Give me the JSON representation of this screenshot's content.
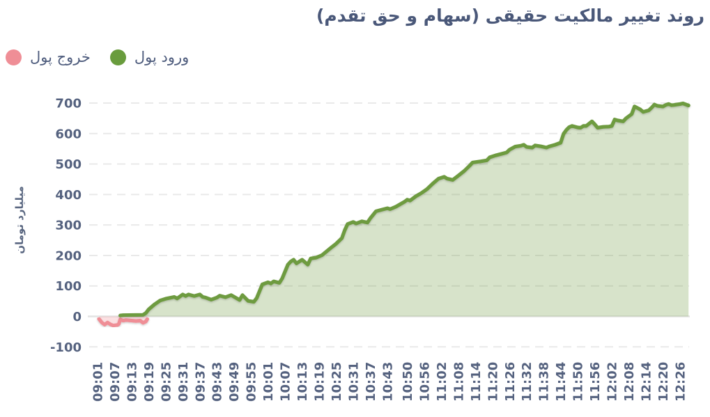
{
  "title": "روند تغییر مالکیت حقیقی (سهام و حق تقدم)",
  "legend": [
    {
      "label": "ورود پول",
      "color": "#699c3d"
    },
    {
      "label": "خروج پول",
      "color": "#ef8e96"
    }
  ],
  "colors": {
    "title_text": "#4a5879",
    "tick_text": "#55627f",
    "grid_dashed": "#e9e9e9",
    "zero_line": "#e3e3e3",
    "inflow_line": "#6e9b41",
    "inflow_fill": "rgba(110,155,65,0.28)",
    "outflow_line": "#ef8e96",
    "outflow_fill": "rgba(239,142,150,0.28)",
    "background": "#ffffff"
  },
  "chart_data": {
    "type": "area",
    "title": "روند تغییر مالکیت حقیقی (سهام و حق تقدم)",
    "xlabel": "",
    "ylabel": "میلیارد تومان",
    "ylim": [
      -100,
      700
    ],
    "y_ticks": [
      700,
      600,
      500,
      400,
      300,
      200,
      100,
      0,
      -100
    ],
    "grid": "horizontal-dashed",
    "legend_position": "top-left",
    "x_unit": "minutes_after_09:01",
    "x_tick_labels": [
      "09:01",
      "09:07",
      "09:13",
      "09:19",
      "09:25",
      "09:31",
      "09:37",
      "09:43",
      "09:49",
      "09:55",
      "10:01",
      "10:07",
      "10:13",
      "10:19",
      "10:25",
      "10:31",
      "10:37",
      "10:43",
      "10:50",
      "10:56",
      "11:02",
      "11:08",
      "11:14",
      "11:20",
      "11:26",
      "11:32",
      "11:38",
      "11:44",
      "11:50",
      "11:56",
      "12:02",
      "12:08",
      "12:14",
      "12:20",
      "12:26"
    ],
    "series": [
      {
        "name": "ورود پول",
        "key": "inflow",
        "points": [
          [
            8,
            3
          ],
          [
            9,
            4
          ],
          [
            16,
            5
          ],
          [
            17,
            11
          ],
          [
            18,
            23
          ],
          [
            20,
            39
          ],
          [
            22,
            52
          ],
          [
            24,
            58
          ],
          [
            26,
            62
          ],
          [
            27,
            64
          ],
          [
            28,
            59
          ],
          [
            30,
            72
          ],
          [
            31,
            67
          ],
          [
            32,
            72
          ],
          [
            34,
            67
          ],
          [
            36,
            72
          ],
          [
            37,
            64
          ],
          [
            38,
            62
          ],
          [
            40,
            55
          ],
          [
            42,
            62
          ],
          [
            43,
            68
          ],
          [
            45,
            63
          ],
          [
            47,
            70
          ],
          [
            50,
            54
          ],
          [
            51,
            70
          ],
          [
            53,
            51
          ],
          [
            55,
            48
          ],
          [
            56,
            60
          ],
          [
            58,
            105
          ],
          [
            60,
            112
          ],
          [
            61,
            108
          ],
          [
            62,
            115
          ],
          [
            64,
            110
          ],
          [
            65,
            125
          ],
          [
            67,
            170
          ],
          [
            68,
            180
          ],
          [
            69,
            186
          ],
          [
            70,
            174
          ],
          [
            72,
            186
          ],
          [
            74,
            170
          ],
          [
            75,
            190
          ],
          [
            77,
            193
          ],
          [
            79,
            201
          ],
          [
            82,
            224
          ],
          [
            84,
            239
          ],
          [
            86,
            257
          ],
          [
            87,
            283
          ],
          [
            88,
            303
          ],
          [
            90,
            310
          ],
          [
            91,
            305
          ],
          [
            93,
            312
          ],
          [
            95,
            308
          ],
          [
            96,
            322
          ],
          [
            98,
            345
          ],
          [
            100,
            350
          ],
          [
            102,
            355
          ],
          [
            103,
            352
          ],
          [
            105,
            360
          ],
          [
            108,
            376
          ],
          [
            109,
            383
          ],
          [
            110,
            380
          ],
          [
            112,
            394
          ],
          [
            114,
            405
          ],
          [
            116,
            418
          ],
          [
            118,
            436
          ],
          [
            120,
            452
          ],
          [
            122,
            458
          ],
          [
            123,
            452
          ],
          [
            125,
            448
          ],
          [
            127,
            462
          ],
          [
            129,
            477
          ],
          [
            131,
            495
          ],
          [
            132,
            505
          ],
          [
            135,
            509
          ],
          [
            137,
            512
          ],
          [
            138,
            522
          ],
          [
            140,
            528
          ],
          [
            142,
            533
          ],
          [
            144,
            538
          ],
          [
            145,
            547
          ],
          [
            147,
            557
          ],
          [
            149,
            560
          ],
          [
            150,
            563
          ],
          [
            151,
            556
          ],
          [
            153,
            554
          ],
          [
            154,
            561
          ],
          [
            156,
            558
          ],
          [
            158,
            554
          ],
          [
            159,
            558
          ],
          [
            161,
            563
          ],
          [
            163,
            570
          ],
          [
            164,
            599
          ],
          [
            165,
            612
          ],
          [
            166,
            621
          ],
          [
            167,
            625
          ],
          [
            169,
            620
          ],
          [
            170,
            619
          ],
          [
            171,
            625
          ],
          [
            172,
            625
          ],
          [
            174,
            640
          ],
          [
            175,
            630
          ],
          [
            176,
            619
          ],
          [
            178,
            622
          ],
          [
            180,
            623
          ],
          [
            181,
            625
          ],
          [
            182,
            646
          ],
          [
            183,
            643
          ],
          [
            185,
            640
          ],
          [
            186,
            650
          ],
          [
            188,
            664
          ],
          [
            189,
            689
          ],
          [
            191,
            679
          ],
          [
            192,
            671
          ],
          [
            194,
            676
          ],
          [
            195,
            685
          ],
          [
            196,
            695
          ],
          [
            197,
            691
          ],
          [
            199,
            689
          ],
          [
            200,
            694
          ],
          [
            201,
            697
          ],
          [
            202,
            693
          ],
          [
            203,
            694
          ],
          [
            205,
            697
          ],
          [
            206,
            699
          ],
          [
            208,
            692
          ]
        ]
      },
      {
        "name": "خروج پول",
        "key": "outflow",
        "points": [
          [
            0.5,
            -8
          ],
          [
            1.5,
            -20
          ],
          [
            2.5,
            -27
          ],
          [
            3.5,
            -20
          ],
          [
            4.5,
            -26
          ],
          [
            5.5,
            -30
          ],
          [
            7,
            -28
          ],
          [
            7.5,
            -25
          ],
          [
            8,
            -10
          ],
          [
            9,
            -14
          ],
          [
            10,
            -12
          ],
          [
            11,
            -13
          ],
          [
            12,
            -14
          ],
          [
            13.5,
            -15
          ],
          [
            15,
            -14
          ],
          [
            16,
            -21
          ],
          [
            17,
            -17
          ],
          [
            17.5,
            -9
          ]
        ]
      }
    ]
  }
}
